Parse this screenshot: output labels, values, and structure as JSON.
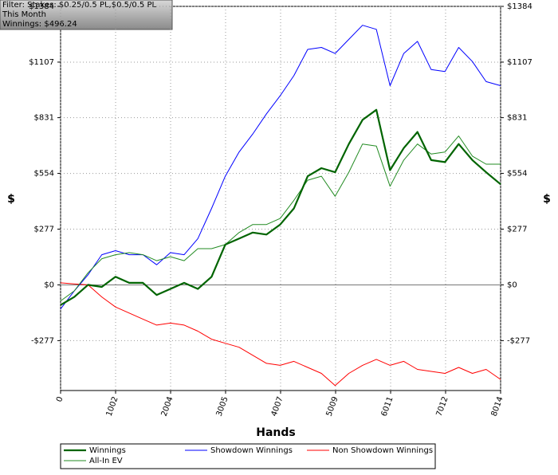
{
  "chart_data": {
    "type": "line",
    "filter_lines": [
      "Filter: Stakes: $0.25/0.5 PL,$0.5/0.5 PL",
      "This Month",
      "Winnings: $496.24"
    ],
    "xlabel": "Hands",
    "ylabel": "$",
    "y2label": "$",
    "x": [
      0,
      250,
      500,
      750,
      1000,
      1250,
      1500,
      1750,
      2000,
      2250,
      2500,
      2750,
      3000,
      3250,
      3500,
      3750,
      4000,
      4250,
      4500,
      4750,
      5000,
      5250,
      5500,
      5750,
      6000,
      6250,
      6500,
      6750,
      7000,
      7250,
      7500,
      7750,
      8014
    ],
    "series": [
      {
        "name": "Winnings",
        "color": "#006400",
        "width": 2.2,
        "values": [
          -100,
          -60,
          0,
          -10,
          40,
          10,
          10,
          -50,
          -20,
          10,
          -20,
          40,
          200,
          230,
          260,
          250,
          300,
          380,
          540,
          580,
          560,
          700,
          820,
          870,
          570,
          680,
          760,
          620,
          610,
          700,
          620,
          560,
          500
        ]
      },
      {
        "name": "All-In EV",
        "color": "#228b22",
        "width": 1,
        "values": [
          -80,
          -30,
          60,
          130,
          150,
          160,
          150,
          120,
          140,
          120,
          180,
          180,
          200,
          260,
          300,
          300,
          330,
          420,
          520,
          540,
          440,
          560,
          700,
          690,
          490,
          620,
          700,
          650,
          660,
          740,
          640,
          600,
          600
        ]
      },
      {
        "name": "Showdown Winnings",
        "color": "#0000ff",
        "width": 1,
        "values": [
          -120,
          -30,
          50,
          150,
          170,
          150,
          150,
          100,
          160,
          150,
          230,
          380,
          540,
          660,
          750,
          850,
          940,
          1040,
          1170,
          1180,
          1150,
          1220,
          1290,
          1270,
          990,
          1150,
          1210,
          1070,
          1060,
          1180,
          1110,
          1010,
          990
        ]
      },
      {
        "name": "Non Showdown Winnings",
        "color": "#ff0000",
        "width": 1,
        "values": [
          10,
          5,
          0,
          -60,
          -110,
          -140,
          -170,
          -200,
          -190,
          -200,
          -230,
          -270,
          -290,
          -310,
          -350,
          -390,
          -400,
          -380,
          -410,
          -440,
          -500,
          -440,
          -400,
          -370,
          -400,
          -380,
          -420,
          -430,
          -440,
          -410,
          -440,
          -420,
          -470
        ]
      }
    ],
    "xlim": [
      0,
      8014
    ],
    "xticks": [
      0,
      1002,
      2004,
      3005,
      4007,
      5009,
      6011,
      7012,
      8014
    ],
    "ylim": [
      -525,
      1384
    ],
    "yticks": [
      {
        "value": -277,
        "label": "-$277"
      },
      {
        "value": 0,
        "label": "$0"
      },
      {
        "value": 277,
        "label": "$277"
      },
      {
        "value": 554,
        "label": "$554"
      },
      {
        "value": 831,
        "label": "$831"
      },
      {
        "value": 1107,
        "label": "$1107"
      },
      {
        "value": 1384,
        "label": "$1384"
      }
    ],
    "grid": true,
    "legend": "bottom"
  }
}
